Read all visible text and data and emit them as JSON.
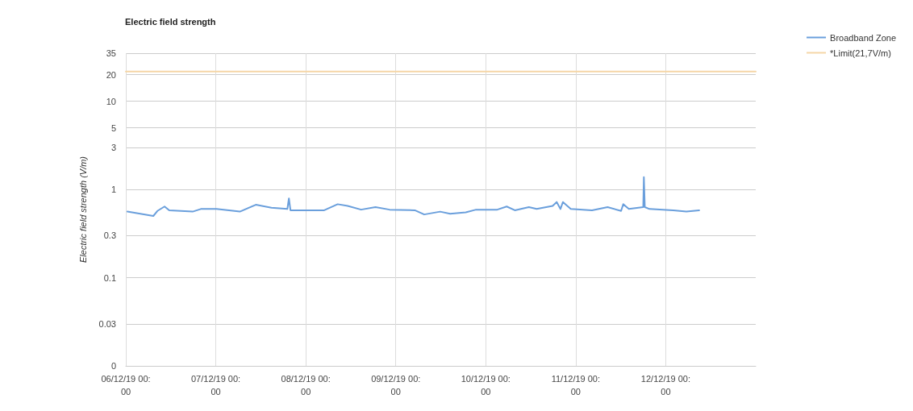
{
  "chart_data": {
    "type": "line",
    "title": "Electric field strength",
    "ylabel": "Electric field strength (V/m)",
    "log": "y",
    "grid": true,
    "legend": "top right",
    "marker": "none",
    "line_style": "solid",
    "xlim": [
      "--12-06T00:00",
      "--12-13T00:00"
    ],
    "xticks": [
      {
        "value": "--12-06T00:00",
        "label": "06/12/19 00:00"
      },
      {
        "value": "--12-07T00:00",
        "label": "07/12/19 00:00"
      },
      {
        "value": "--12-08T00:00",
        "label": "08/12/19 00:00"
      },
      {
        "value": "--12-09T00:00",
        "label": "09/12/19 00:00"
      },
      {
        "value": "--12-10T00:00",
        "label": "10/12/19 00:00"
      },
      {
        "value": "--12-11T00:00",
        "label": "11/12/19 00:00"
      },
      {
        "value": "--12-12T00:00",
        "label": "12/12/19 00:00"
      }
    ],
    "ylim": [
      0.01,
      35
    ],
    "yticks": [
      {
        "value": 0.01,
        "label": "0"
      },
      0.03,
      0.1,
      0.3,
      1,
      3,
      5,
      10,
      20,
      35
    ],
    "series": [
      {
        "name": "Broadband Zone",
        "color": "#6a9fdc",
        "x": [
          "--12-06T00:25",
          "--12-06T07:20",
          "--12-06T08:25",
          "--12-06T10:20",
          "--12-06T11:35",
          "--12-06T17:50",
          "--12-06T20:00",
          "--12-07T00:10",
          "--12-07T06:25",
          "--12-07T10:40",
          "--12-07T14:50",
          "--12-07T19:05",
          "--12-07T19:30",
          "--12-07T19:55",
          "--12-08T04:55",
          "--12-08T08:30",
          "--12-08T11:10",
          "--12-08T14:45",
          "--12-08T18:35",
          "--12-08T22:20",
          "--12-09T05:05",
          "--12-09T07:35",
          "--12-09T11:50",
          "--12-09T14:30",
          "--12-09T18:40",
          "--12-09T21:25",
          "--12-10T03:05",
          "--12-10T05:35",
          "--12-10T07:45",
          "--12-10T11:30",
          "--12-10T13:35",
          "--12-10T17:50",
          "--12-10T18:55",
          "--12-10T19:55",
          "--12-10T20:35",
          "--12-10T22:40",
          "--12-11T04:20",
          "--12-11T08:30",
          "--12-11T12:05",
          "--12-11T12:40",
          "--12-11T14:10",
          "--12-11T18:00",
          "--12-11T18:10",
          "--12-11T18:25",
          "--12-11T19:40",
          "--12-12T02:00",
          "--12-12T05:30",
          "--12-12T08:55"
        ],
        "values": [
          0.56,
          0.5,
          0.57,
          0.64,
          0.58,
          0.56,
          0.6,
          0.6,
          0.56,
          0.67,
          0.62,
          0.6,
          0.79,
          0.58,
          0.58,
          0.68,
          0.65,
          0.59,
          0.63,
          0.59,
          0.58,
          0.52,
          0.56,
          0.53,
          0.55,
          0.59,
          0.59,
          0.64,
          0.58,
          0.63,
          0.6,
          0.65,
          0.72,
          0.6,
          0.72,
          0.6,
          0.58,
          0.63,
          0.57,
          0.68,
          0.6,
          0.63,
          1.38,
          0.63,
          0.6,
          0.58,
          0.56,
          0.58
        ]
      },
      {
        "name": "*Limit(21,7V/m)",
        "color": "#f5d6a6",
        "x": [
          "--12-06T00:00",
          "--12-13T00:00"
        ],
        "values": [
          21.7,
          21.7
        ]
      }
    ]
  }
}
